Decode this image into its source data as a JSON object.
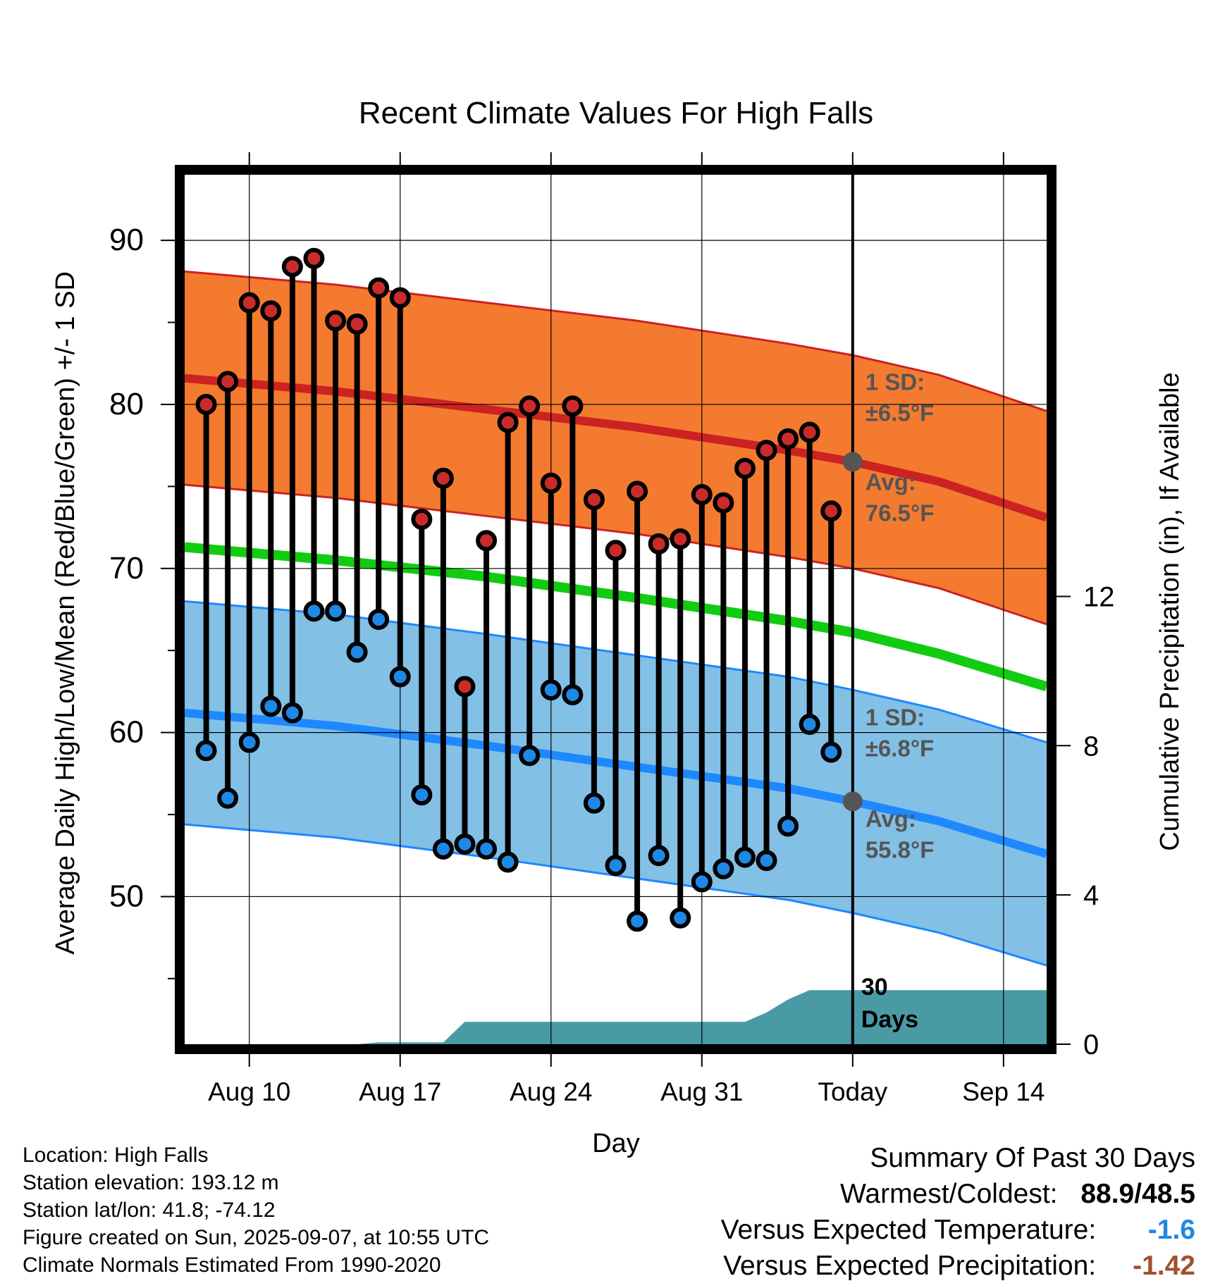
{
  "chart_data": {
    "type": "line",
    "title": "Recent Climate Values For High Falls",
    "xlabel": "Day",
    "ylabel": "Average Daily High/Low/Mean (Red/Blue/Green) +/- 1 SD",
    "ylabel_right": "Cumulative Precipitation (in), If Available",
    "x_tick_labels": [
      "Aug 10",
      "Aug 17",
      "Aug 24",
      "Aug 31",
      "Today",
      "Sep 14"
    ],
    "y_ticks": [
      50,
      60,
      70,
      80,
      90
    ],
    "y_ticks_right": [
      0,
      4,
      8,
      12
    ],
    "ylim": [
      41,
      94
    ],
    "ylim_right": [
      0,
      23.3
    ],
    "grid": true,
    "days": [
      "Aug 7",
      "Aug 8",
      "Aug 9",
      "Aug 10",
      "Aug 11",
      "Aug 12",
      "Aug 13",
      "Aug 14",
      "Aug 15",
      "Aug 16",
      "Aug 17",
      "Aug 18",
      "Aug 19",
      "Aug 20",
      "Aug 21",
      "Aug 22",
      "Aug 23",
      "Aug 24",
      "Aug 25",
      "Aug 26",
      "Aug 27",
      "Aug 28",
      "Aug 29",
      "Aug 30",
      "Aug 31",
      "Sep 1",
      "Sep 2",
      "Sep 3",
      "Sep 4",
      "Sep 5",
      "Sep 6",
      "Sep 7"
    ],
    "series": [
      {
        "name": "Daily High",
        "color": "#c92b2b",
        "dates": [
          "Aug 8",
          "Aug 9",
          "Aug 10",
          "Aug 11",
          "Aug 12",
          "Aug 13",
          "Aug 14",
          "Aug 15",
          "Aug 16",
          "Aug 17",
          "Aug 18",
          "Aug 19",
          "Aug 20",
          "Aug 21",
          "Aug 22",
          "Aug 23",
          "Aug 24",
          "Aug 25",
          "Aug 26",
          "Aug 27",
          "Aug 28",
          "Aug 29",
          "Aug 30",
          "Aug 31",
          "Sep 1",
          "Sep 2",
          "Sep 3",
          "Sep 4",
          "Sep 5",
          "Sep 6"
        ],
        "values": [
          80.0,
          81.4,
          86.2,
          85.7,
          88.4,
          88.9,
          85.1,
          84.9,
          87.1,
          86.5,
          73.0,
          75.5,
          62.8,
          71.7,
          78.9,
          79.9,
          75.2,
          79.9,
          74.2,
          71.1,
          74.7,
          71.5,
          71.8,
          74.5,
          74.0,
          76.1,
          77.2,
          77.9,
          78.3,
          73.5
        ]
      },
      {
        "name": "Daily Low",
        "color": "#1e88e5",
        "dates": [
          "Aug 8",
          "Aug 9",
          "Aug 10",
          "Aug 11",
          "Aug 12",
          "Aug 13",
          "Aug 14",
          "Aug 15",
          "Aug 16",
          "Aug 17",
          "Aug 18",
          "Aug 19",
          "Aug 20",
          "Aug 21",
          "Aug 22",
          "Aug 23",
          "Aug 24",
          "Aug 25",
          "Aug 26",
          "Aug 27",
          "Aug 28",
          "Aug 29",
          "Aug 30",
          "Aug 31",
          "Sep 1",
          "Sep 2",
          "Sep 3",
          "Sep 4",
          "Sep 5",
          "Sep 6"
        ],
        "values": [
          58.9,
          56.0,
          59.4,
          61.6,
          61.2,
          67.4,
          67.4,
          64.9,
          66.9,
          63.4,
          56.2,
          52.9,
          53.2,
          52.9,
          52.1,
          58.6,
          62.6,
          62.3,
          55.7,
          51.9,
          48.5,
          52.5,
          48.7,
          50.9,
          51.7,
          52.4,
          52.2,
          54.3,
          60.5,
          58.8
        ]
      },
      {
        "name": "Normal High",
        "color": "#cc2222",
        "dates": [
          "Aug 7",
          "Aug 14",
          "Aug 21",
          "Aug 28",
          "Sep 4",
          "Sep 7",
          "Sep 11",
          "Sep 16"
        ],
        "values": [
          81.6,
          80.8,
          79.7,
          78.6,
          77.2,
          76.5,
          75.3,
          73.1
        ],
        "sd": 6.5
      },
      {
        "name": "Normal Mean",
        "color": "#11cc11",
        "dates": [
          "Aug 7",
          "Aug 14",
          "Aug 21",
          "Aug 28",
          "Sep 4",
          "Sep 7",
          "Sep 11",
          "Sep 16"
        ],
        "values": [
          71.3,
          70.5,
          69.5,
          68.2,
          66.8,
          66.1,
          64.8,
          62.8
        ]
      },
      {
        "name": "Normal Low",
        "color": "#1e88ff",
        "dates": [
          "Aug 7",
          "Aug 14",
          "Aug 21",
          "Aug 28",
          "Sep 4",
          "Sep 7",
          "Sep 11",
          "Sep 16"
        ],
        "values": [
          61.2,
          60.4,
          59.2,
          57.9,
          56.6,
          55.8,
          54.6,
          52.6
        ],
        "sd": 6.8
      },
      {
        "name": "Cumulative Precipitation",
        "color": "#4a9aa5",
        "dates": [
          "Aug 7",
          "Aug 15",
          "Aug 16",
          "Aug 18",
          "Aug 19",
          "Aug 20",
          "Aug 21",
          "Sep 1",
          "Sep 2",
          "Sep 3",
          "Sep 4",
          "Sep 5",
          "Sep 16"
        ],
        "values": [
          0.0,
          0.0,
          0.05,
          0.05,
          0.05,
          0.6,
          0.6,
          0.6,
          0.6,
          0.85,
          1.2,
          1.45,
          1.45
        ]
      }
    ],
    "annotations": {
      "high_sd_label": "1 SD:",
      "high_sd_value": "±6.5",
      "high_avg_label": "Avg:",
      "high_avg_value": "76.5",
      "low_sd_label": "1 SD:",
      "low_sd_value": "±6.8",
      "low_avg_label": "Avg:",
      "low_avg_value": "55.8",
      "unit": "°F",
      "days_line1": "30",
      "days_line2": "Days"
    },
    "colors": {
      "high_band": "#f47a30",
      "low_band": "#82c0e6",
      "precip_fill": "#4a9aa5",
      "annotation_text": "#555555"
    }
  },
  "footer": {
    "location": "Location: High Falls",
    "elevation": "Station elevation: 193.12 m",
    "latlon": "Station lat/lon: 41.8; -74.12",
    "created": "Figure created on Sun, 2025-09-07, at 10:55 UTC",
    "normals": "Climate Normals Estimated From 1990-2020"
  },
  "summary": {
    "title": "Summary Of Past 30 Days",
    "warm_cold_label": "Warmest/Coldest:",
    "warm_cold_value": "88.9/48.5",
    "temp_label": "Versus Expected Temperature:",
    "temp_value": "-1.6",
    "temp_color": "#1e88e5",
    "precip_label": "Versus Expected Precipitation:",
    "precip_value": "-1.42",
    "precip_color": "#a0522d"
  }
}
